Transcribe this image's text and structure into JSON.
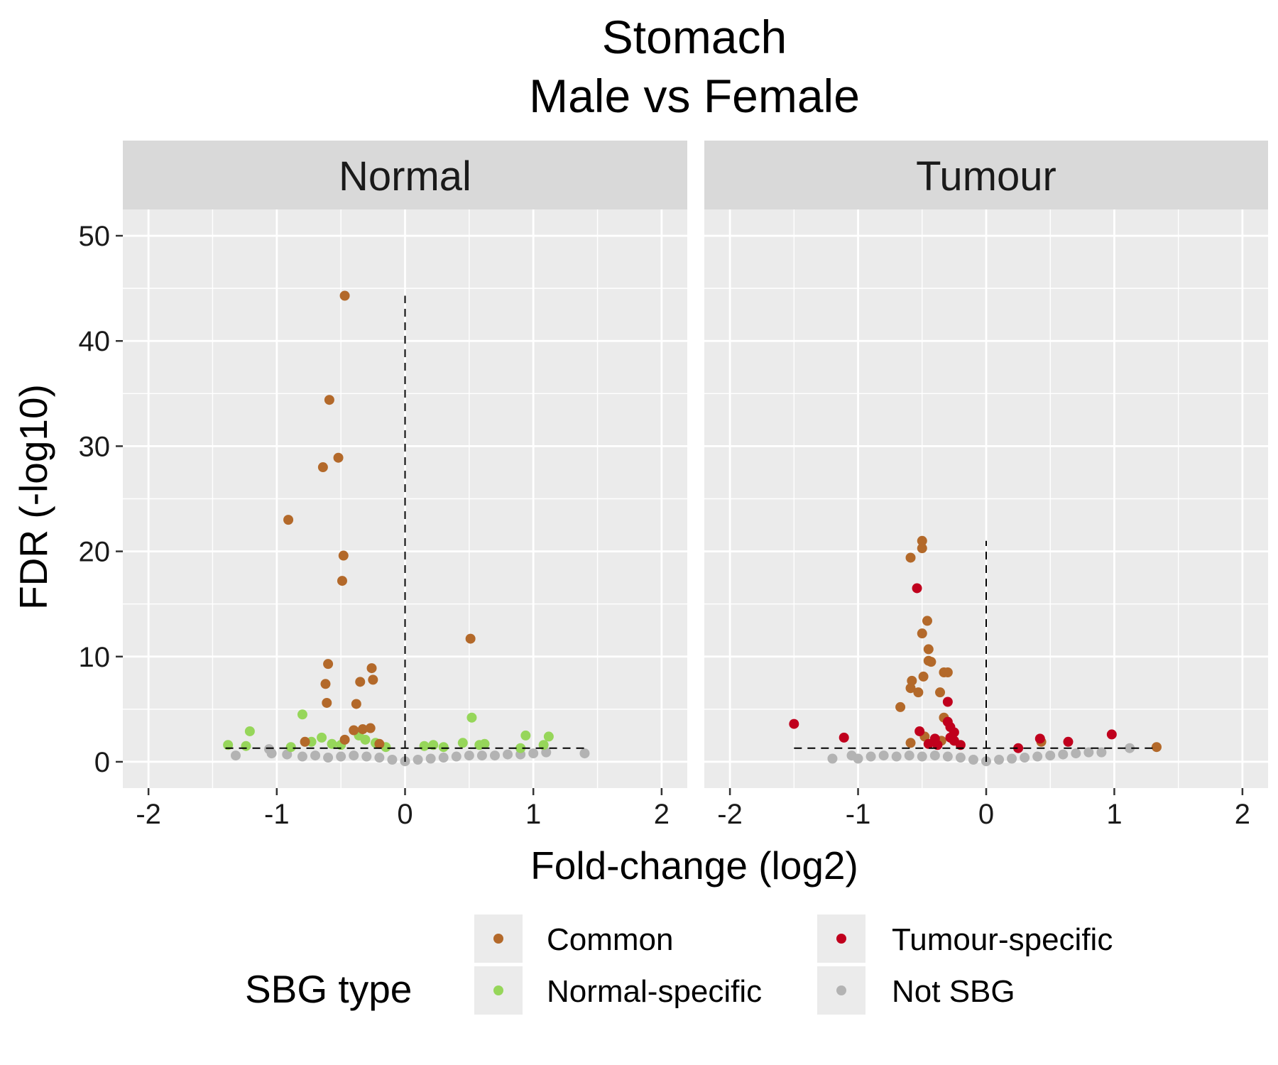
{
  "chart_data": {
    "type": "scatter",
    "title": "Stomach",
    "subtitle": "Male vs Female",
    "xlabel": "Fold-change (log2)",
    "ylabel": "FDR (-log10)",
    "xlim": [
      -2.2,
      2.2
    ],
    "ylim": [
      -2.5,
      52.5
    ],
    "x_ticks": [
      "-2",
      "-1",
      "0",
      "1",
      "2"
    ],
    "y_ticks": [
      "0",
      "10",
      "20",
      "30",
      "40",
      "50"
    ],
    "grid": true,
    "legend": {
      "title": "SBG type",
      "position": "bottom",
      "entries": [
        {
          "label": "Common",
          "color": "#b3692a"
        },
        {
          "label": "Normal-specific",
          "color": "#96d65a"
        },
        {
          "label": "Tumour-specific",
          "color": "#c0001d"
        },
        {
          "label": "Not SBG",
          "color": "#b3b3b3"
        }
      ]
    },
    "colors": {
      "Common": "#b3692a",
      "Normal-specific": "#96d65a",
      "Tumour-specific": "#c0001d",
      "Not SBG": "#b3b3b3"
    },
    "panels": [
      {
        "name": "Normal",
        "threshold": {
          "y": 1.3,
          "x_range": [
            -1.4,
            1.4
          ]
        },
        "vline": {
          "x": 0,
          "y_max": 44.3
        },
        "series": [
          {
            "name": "Common",
            "points": [
              [
                -0.47,
                44.3
              ],
              [
                -0.59,
                34.4
              ],
              [
                -0.52,
                28.9
              ],
              [
                -0.64,
                28.0
              ],
              [
                -0.91,
                23.0
              ],
              [
                -0.48,
                19.6
              ],
              [
                -0.49,
                17.2
              ],
              [
                0.51,
                11.7
              ],
              [
                -0.6,
                9.3
              ],
              [
                -0.26,
                8.9
              ],
              [
                -0.62,
                7.4
              ],
              [
                -0.35,
                7.6
              ],
              [
                -0.25,
                7.8
              ],
              [
                -0.61,
                5.6
              ],
              [
                -0.38,
                5.5
              ],
              [
                -0.4,
                3.0
              ],
              [
                -0.33,
                3.1
              ],
              [
                -0.27,
                3.2
              ],
              [
                -0.78,
                1.9
              ],
              [
                -0.47,
                2.1
              ],
              [
                -0.2,
                1.7
              ]
            ]
          },
          {
            "name": "Normal-specific",
            "points": [
              [
                -1.38,
                1.6
              ],
              [
                -1.21,
                2.9
              ],
              [
                -1.24,
                1.5
              ],
              [
                -0.89,
                1.4
              ],
              [
                -0.8,
                4.5
              ],
              [
                -0.73,
                1.9
              ],
              [
                -0.65,
                2.3
              ],
              [
                -0.57,
                1.7
              ],
              [
                -0.5,
                1.6
              ],
              [
                -0.36,
                2.5
              ],
              [
                -0.31,
                2.1
              ],
              [
                -0.23,
                1.8
              ],
              [
                -0.15,
                1.4
              ],
              [
                0.15,
                1.5
              ],
              [
                0.22,
                1.6
              ],
              [
                0.3,
                1.4
              ],
              [
                0.45,
                1.8
              ],
              [
                0.52,
                4.2
              ],
              [
                0.58,
                1.6
              ],
              [
                0.62,
                1.7
              ],
              [
                0.9,
                1.3
              ],
              [
                0.94,
                2.5
              ],
              [
                1.08,
                1.6
              ],
              [
                1.12,
                2.4
              ]
            ]
          },
          {
            "name": "Not SBG",
            "points": [
              [
                -1.32,
                0.6
              ],
              [
                -1.06,
                1.2
              ],
              [
                -1.04,
                0.8
              ],
              [
                -0.92,
                0.7
              ],
              [
                -0.8,
                0.5
              ],
              [
                -0.7,
                0.6
              ],
              [
                -0.6,
                0.4
              ],
              [
                -0.5,
                0.5
              ],
              [
                -0.4,
                0.6
              ],
              [
                -0.3,
                0.5
              ],
              [
                -0.2,
                0.4
              ],
              [
                -0.1,
                0.2
              ],
              [
                0.0,
                0.05
              ],
              [
                0.1,
                0.2
              ],
              [
                0.2,
                0.3
              ],
              [
                0.3,
                0.4
              ],
              [
                0.4,
                0.5
              ],
              [
                0.5,
                0.6
              ],
              [
                0.6,
                0.6
              ],
              [
                0.7,
                0.6
              ],
              [
                0.8,
                0.7
              ],
              [
                0.9,
                0.7
              ],
              [
                1.0,
                0.8
              ],
              [
                1.1,
                0.9
              ],
              [
                1.4,
                0.8
              ]
            ]
          }
        ]
      },
      {
        "name": "Tumour",
        "threshold": {
          "y": 1.3,
          "x_range": [
            -1.5,
            1.33
          ]
        },
        "vline": {
          "x": 0,
          "y_max": 21.0
        },
        "series": [
          {
            "name": "Common",
            "points": [
              [
                -0.5,
                21.0
              ],
              [
                -0.5,
                20.3
              ],
              [
                -0.59,
                19.4
              ],
              [
                -0.46,
                13.4
              ],
              [
                -0.5,
                12.2
              ],
              [
                -0.45,
                10.7
              ],
              [
                -0.45,
                9.6
              ],
              [
                -0.43,
                9.5
              ],
              [
                -0.33,
                8.5
              ],
              [
                -0.3,
                8.5
              ],
              [
                -0.58,
                7.7
              ],
              [
                -0.49,
                8.1
              ],
              [
                -0.59,
                7.0
              ],
              [
                -0.53,
                6.6
              ],
              [
                -0.36,
                6.6
              ],
              [
                -0.67,
                5.2
              ],
              [
                -0.33,
                4.2
              ],
              [
                -0.59,
                1.8
              ],
              [
                -0.48,
                2.4
              ],
              [
                -0.35,
                2.0
              ],
              [
                0.43,
                1.9
              ],
              [
                1.33,
                1.4
              ]
            ]
          },
          {
            "name": "Tumour-specific",
            "points": [
              [
                -1.5,
                3.6
              ],
              [
                -1.11,
                2.3
              ],
              [
                -0.54,
                16.5
              ],
              [
                -0.4,
                2.2
              ],
              [
                -0.3,
                5.7
              ],
              [
                -0.52,
                2.9
              ],
              [
                -0.3,
                3.8
              ],
              [
                -0.28,
                3.3
              ],
              [
                -0.25,
                2.8
              ],
              [
                -0.28,
                2.3
              ],
              [
                -0.45,
                1.7
              ],
              [
                -0.38,
                1.6
              ],
              [
                -0.25,
                2.0
              ],
              [
                -0.2,
                1.6
              ],
              [
                0.25,
                1.3
              ],
              [
                0.42,
                2.2
              ],
              [
                0.64,
                1.9
              ],
              [
                0.98,
                2.6
              ]
            ]
          },
          {
            "name": "Not SBG",
            "points": [
              [
                -1.2,
                0.3
              ],
              [
                -1.05,
                0.6
              ],
              [
                -1.0,
                0.3
              ],
              [
                -0.9,
                0.5
              ],
              [
                -0.8,
                0.6
              ],
              [
                -0.7,
                0.5
              ],
              [
                -0.6,
                0.6
              ],
              [
                -0.5,
                0.5
              ],
              [
                -0.4,
                0.6
              ],
              [
                -0.3,
                0.5
              ],
              [
                -0.2,
                0.4
              ],
              [
                -0.1,
                0.2
              ],
              [
                0.0,
                0.05
              ],
              [
                0.1,
                0.2
              ],
              [
                0.2,
                0.3
              ],
              [
                0.3,
                0.4
              ],
              [
                0.4,
                0.5
              ],
              [
                0.5,
                0.6
              ],
              [
                0.6,
                0.7
              ],
              [
                0.7,
                0.8
              ],
              [
                0.8,
                0.9
              ],
              [
                0.9,
                0.9
              ],
              [
                1.12,
                1.3
              ]
            ]
          }
        ]
      }
    ]
  }
}
